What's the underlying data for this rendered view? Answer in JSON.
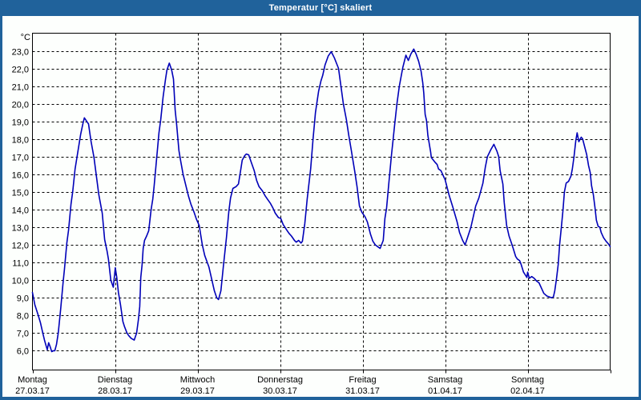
{
  "window": {
    "title": "Temperatur [°C] skaliert",
    "titlebar_color": "#20629B",
    "content_background": "#FDFFFD",
    "text_color": "#000000"
  },
  "chart_data": {
    "type": "line",
    "title": "Temperatur [°C] skaliert",
    "grid": "dashed",
    "legend": "none",
    "y_axis": {
      "unit_label": "°C",
      "min": 6.0,
      "max": 23.0,
      "step": 1.0,
      "tick_values": [
        23,
        22,
        21,
        20,
        19,
        18,
        17,
        16,
        15,
        14,
        13,
        12,
        11,
        10,
        9,
        8,
        7,
        6
      ],
      "tick_labels": [
        "23,0",
        "22,0",
        "21,0",
        "20,0",
        "19,0",
        "18,0",
        "17,0",
        "16,0",
        "15,0",
        "14,0",
        "13,0",
        "12,0",
        "11,0",
        "10,0",
        "9,0",
        "8,0",
        "7,0",
        "6,0"
      ],
      "ylim": [
        4.9,
        24.0
      ]
    },
    "x_axis": {
      "span_hours": 168,
      "day_boundaries_hours": [
        0,
        24,
        48,
        72,
        96,
        120,
        144,
        168
      ],
      "days": [
        {
          "weekday": "Montag",
          "date": "27.03.17"
        },
        {
          "weekday": "Dienstag",
          "date": "28.03.17"
        },
        {
          "weekday": "Mittwoch",
          "date": "29.03.17"
        },
        {
          "weekday": "Donnerstag",
          "date": "30.03.17"
        },
        {
          "weekday": "Freitag",
          "date": "31.03.17"
        },
        {
          "weekday": "Samstag",
          "date": "01.04.17"
        },
        {
          "weekday": "Sonntag",
          "date": "02.04.17"
        }
      ]
    },
    "series": [
      {
        "name": "Temperatur",
        "color": "#0000B8",
        "points": [
          [
            0,
            9.3
          ],
          [
            0.7,
            8.6
          ],
          [
            1.6,
            8.05
          ],
          [
            2.3,
            7.6
          ],
          [
            3,
            7.0
          ],
          [
            3.5,
            6.6
          ],
          [
            4,
            6.25
          ],
          [
            4.3,
            6.05
          ],
          [
            4.7,
            6.45
          ],
          [
            5.1,
            6.25
          ],
          [
            5.6,
            5.95
          ],
          [
            6.1,
            6.0
          ],
          [
            6.5,
            6.0
          ],
          [
            7,
            6.35
          ],
          [
            7.5,
            7.0
          ],
          [
            8.2,
            8.35
          ],
          [
            8.9,
            9.85
          ],
          [
            9.3,
            10.6
          ],
          [
            10,
            12.1
          ],
          [
            10.5,
            12.85
          ],
          [
            11.2,
            14.3
          ],
          [
            11.7,
            15.0
          ],
          [
            12.4,
            16.3
          ],
          [
            13.3,
            17.4
          ],
          [
            14,
            18.25
          ],
          [
            14.7,
            18.9
          ],
          [
            15.1,
            19.2
          ],
          [
            15.6,
            19.05
          ],
          [
            16.3,
            18.85
          ],
          [
            17,
            17.9
          ],
          [
            17.9,
            16.95
          ],
          [
            18.6,
            15.9
          ],
          [
            19.3,
            14.85
          ],
          [
            20.3,
            13.8
          ],
          [
            21,
            12.3
          ],
          [
            21.7,
            11.65
          ],
          [
            22.1,
            11.2
          ],
          [
            22.8,
            10.0
          ],
          [
            23.5,
            9.6
          ],
          [
            24.1,
            10.7
          ],
          [
            24.5,
            10.2
          ],
          [
            25,
            9.3
          ],
          [
            25.6,
            8.6
          ],
          [
            26.3,
            7.65
          ],
          [
            26.8,
            7.35
          ],
          [
            27.5,
            7.0
          ],
          [
            28,
            6.85
          ],
          [
            28.7,
            6.7
          ],
          [
            29.6,
            6.6
          ],
          [
            30.3,
            7.0
          ],
          [
            30.8,
            7.75
          ],
          [
            31.2,
            8.5
          ],
          [
            31.5,
            10.15
          ],
          [
            31.9,
            10.9
          ],
          [
            32.2,
            11.8
          ],
          [
            32.6,
            12.25
          ],
          [
            33.2,
            12.5
          ],
          [
            33.8,
            12.8
          ],
          [
            34.5,
            14.0
          ],
          [
            35,
            14.6
          ],
          [
            35.4,
            15.35
          ],
          [
            36.1,
            16.85
          ],
          [
            36.8,
            18.35
          ],
          [
            37.3,
            19.1
          ],
          [
            38,
            20.4
          ],
          [
            38.7,
            21.4
          ],
          [
            39.1,
            21.9
          ],
          [
            39.8,
            22.3
          ],
          [
            40.5,
            21.9
          ],
          [
            41,
            21.4
          ],
          [
            41.5,
            19.65
          ],
          [
            41.9,
            18.9
          ],
          [
            42.6,
            17.35
          ],
          [
            43.1,
            16.75
          ],
          [
            43.8,
            16.0
          ],
          [
            44.7,
            15.3
          ],
          [
            45.4,
            14.75
          ],
          [
            46.1,
            14.3
          ],
          [
            47,
            13.85
          ],
          [
            47.7,
            13.45
          ],
          [
            48.5,
            13.1
          ],
          [
            49.4,
            12.0
          ],
          [
            50.1,
            11.4
          ],
          [
            51.3,
            10.75
          ],
          [
            52.2,
            10.0
          ],
          [
            52.9,
            9.4
          ],
          [
            53.6,
            9.0
          ],
          [
            54.1,
            8.9
          ],
          [
            54.8,
            9.4
          ],
          [
            55.5,
            10.75
          ],
          [
            56.4,
            12.4
          ],
          [
            57.1,
            13.9
          ],
          [
            57.6,
            14.65
          ],
          [
            58.3,
            15.2
          ],
          [
            59.2,
            15.3
          ],
          [
            59.9,
            15.45
          ],
          [
            60.6,
            16.3
          ],
          [
            61,
            16.8
          ],
          [
            61.7,
            17.05
          ],
          [
            62.2,
            17.15
          ],
          [
            62.9,
            17.1
          ],
          [
            63.6,
            16.7
          ],
          [
            64.5,
            16.2
          ],
          [
            65.2,
            15.65
          ],
          [
            65.9,
            15.3
          ],
          [
            66.9,
            15.05
          ],
          [
            67.6,
            14.8
          ],
          [
            68.3,
            14.6
          ],
          [
            69.2,
            14.35
          ],
          [
            69.9,
            14.1
          ],
          [
            70.6,
            13.8
          ],
          [
            71.5,
            13.55
          ],
          [
            72.2,
            13.5
          ],
          [
            72.9,
            13.15
          ],
          [
            73.9,
            12.85
          ],
          [
            74.6,
            12.65
          ],
          [
            75.3,
            12.5
          ],
          [
            76.2,
            12.25
          ],
          [
            76.7,
            12.15
          ],
          [
            77.4,
            12.25
          ],
          [
            78.1,
            12.1
          ],
          [
            78.5,
            12.2
          ],
          [
            79.2,
            13.2
          ],
          [
            79.9,
            14.6
          ],
          [
            80.9,
            16.3
          ],
          [
            81.6,
            18.0
          ],
          [
            82.3,
            19.5
          ],
          [
            83.2,
            20.7
          ],
          [
            83.9,
            21.3
          ],
          [
            84.4,
            21.6
          ],
          [
            85.1,
            22.2
          ],
          [
            86,
            22.7
          ],
          [
            86.9,
            22.95
          ],
          [
            87.8,
            22.6
          ],
          [
            89,
            22.0
          ],
          [
            89.7,
            21.0
          ],
          [
            90.4,
            20.0
          ],
          [
            91.3,
            19.1
          ],
          [
            92,
            18.2
          ],
          [
            92.7,
            17.4
          ],
          [
            93.7,
            16.2
          ],
          [
            94.4,
            15.3
          ],
          [
            95.1,
            14.2
          ],
          [
            95.8,
            13.85
          ],
          [
            96.7,
            13.6
          ],
          [
            97.4,
            13.3
          ],
          [
            98.3,
            12.6
          ],
          [
            99,
            12.2
          ],
          [
            99.7,
            12.0
          ],
          [
            100.4,
            11.9
          ],
          [
            101.1,
            11.8
          ],
          [
            102,
            12.25
          ],
          [
            102.5,
            13.5
          ],
          [
            103,
            14.1
          ],
          [
            103.7,
            15.6
          ],
          [
            104.4,
            17.1
          ],
          [
            104.9,
            18.0
          ],
          [
            105.3,
            18.75
          ],
          [
            106,
            20.0
          ],
          [
            106.7,
            21.0
          ],
          [
            107.7,
            22.05
          ],
          [
            108.6,
            22.75
          ],
          [
            109.3,
            22.45
          ],
          [
            110,
            22.8
          ],
          [
            110.9,
            23.1
          ],
          [
            111.6,
            22.8
          ],
          [
            112.3,
            22.4
          ],
          [
            113,
            21.85
          ],
          [
            113.5,
            21.2
          ],
          [
            113.8,
            20.6
          ],
          [
            114.2,
            19.4
          ],
          [
            114.6,
            19.05
          ],
          [
            115,
            18.2
          ],
          [
            115.8,
            17.25
          ],
          [
            116,
            16.95
          ],
          [
            117,
            16.7
          ],
          [
            117.7,
            16.55
          ],
          [
            118.1,
            16.3
          ],
          [
            118.8,
            16.2
          ],
          [
            119.5,
            15.9
          ],
          [
            120,
            15.7
          ],
          [
            121.2,
            14.8
          ],
          [
            122.3,
            14.1
          ],
          [
            123.5,
            13.3
          ],
          [
            124.2,
            12.7
          ],
          [
            125.1,
            12.25
          ],
          [
            125.8,
            12.0
          ],
          [
            126.5,
            12.4
          ],
          [
            127.5,
            13.0
          ],
          [
            128.2,
            13.6
          ],
          [
            128.9,
            14.2
          ],
          [
            129.8,
            14.65
          ],
          [
            131,
            15.5
          ],
          [
            131.7,
            16.4
          ],
          [
            132.3,
            17.0
          ],
          [
            133.3,
            17.4
          ],
          [
            134.2,
            17.7
          ],
          [
            135.1,
            17.3
          ],
          [
            135.6,
            17.0
          ],
          [
            136,
            16.2
          ],
          [
            136.8,
            15.45
          ],
          [
            137.2,
            14.4
          ],
          [
            137.9,
            13.1
          ],
          [
            138.6,
            12.5
          ],
          [
            139.3,
            12.1
          ],
          [
            139.8,
            11.8
          ],
          [
            140.5,
            11.35
          ],
          [
            141,
            11.2
          ],
          [
            141.7,
            11.1
          ],
          [
            142.1,
            10.9
          ],
          [
            142.8,
            10.45
          ],
          [
            143.3,
            10.3
          ],
          [
            143.8,
            10.15
          ],
          [
            144,
            10.45
          ],
          [
            144.5,
            10.1
          ],
          [
            145.2,
            10.2
          ],
          [
            145.9,
            10.1
          ],
          [
            146.6,
            9.95
          ],
          [
            147.3,
            9.85
          ],
          [
            148,
            9.55
          ],
          [
            148.7,
            9.25
          ],
          [
            149.6,
            9.1
          ],
          [
            150.3,
            9.05
          ],
          [
            151,
            9.0
          ],
          [
            151.5,
            9.05
          ],
          [
            151.9,
            9.4
          ],
          [
            152.4,
            10.1
          ],
          [
            152.9,
            10.9
          ],
          [
            153.3,
            12.0
          ],
          [
            153.8,
            13.0
          ],
          [
            154.3,
            14.0
          ],
          [
            154.7,
            15.0
          ],
          [
            155.2,
            15.5
          ],
          [
            155.9,
            15.6
          ],
          [
            156.6,
            15.9
          ],
          [
            157,
            16.3
          ],
          [
            157.5,
            17.0
          ],
          [
            158,
            17.9
          ],
          [
            158.4,
            18.35
          ],
          [
            158.9,
            17.85
          ],
          [
            159.6,
            18.1
          ],
          [
            160,
            18.0
          ],
          [
            160.8,
            17.4
          ],
          [
            161.2,
            17.1
          ],
          [
            161.7,
            16.5
          ],
          [
            162.2,
            16.1
          ],
          [
            162.6,
            15.35
          ],
          [
            163.1,
            14.85
          ],
          [
            163.6,
            14.1
          ],
          [
            164,
            13.4
          ],
          [
            164.5,
            13.05
          ],
          [
            165,
            13.0
          ],
          [
            165.4,
            12.7
          ],
          [
            166.1,
            12.4
          ],
          [
            166.8,
            12.2
          ],
          [
            167.5,
            12.05
          ],
          [
            168,
            11.9
          ]
        ]
      }
    ]
  }
}
